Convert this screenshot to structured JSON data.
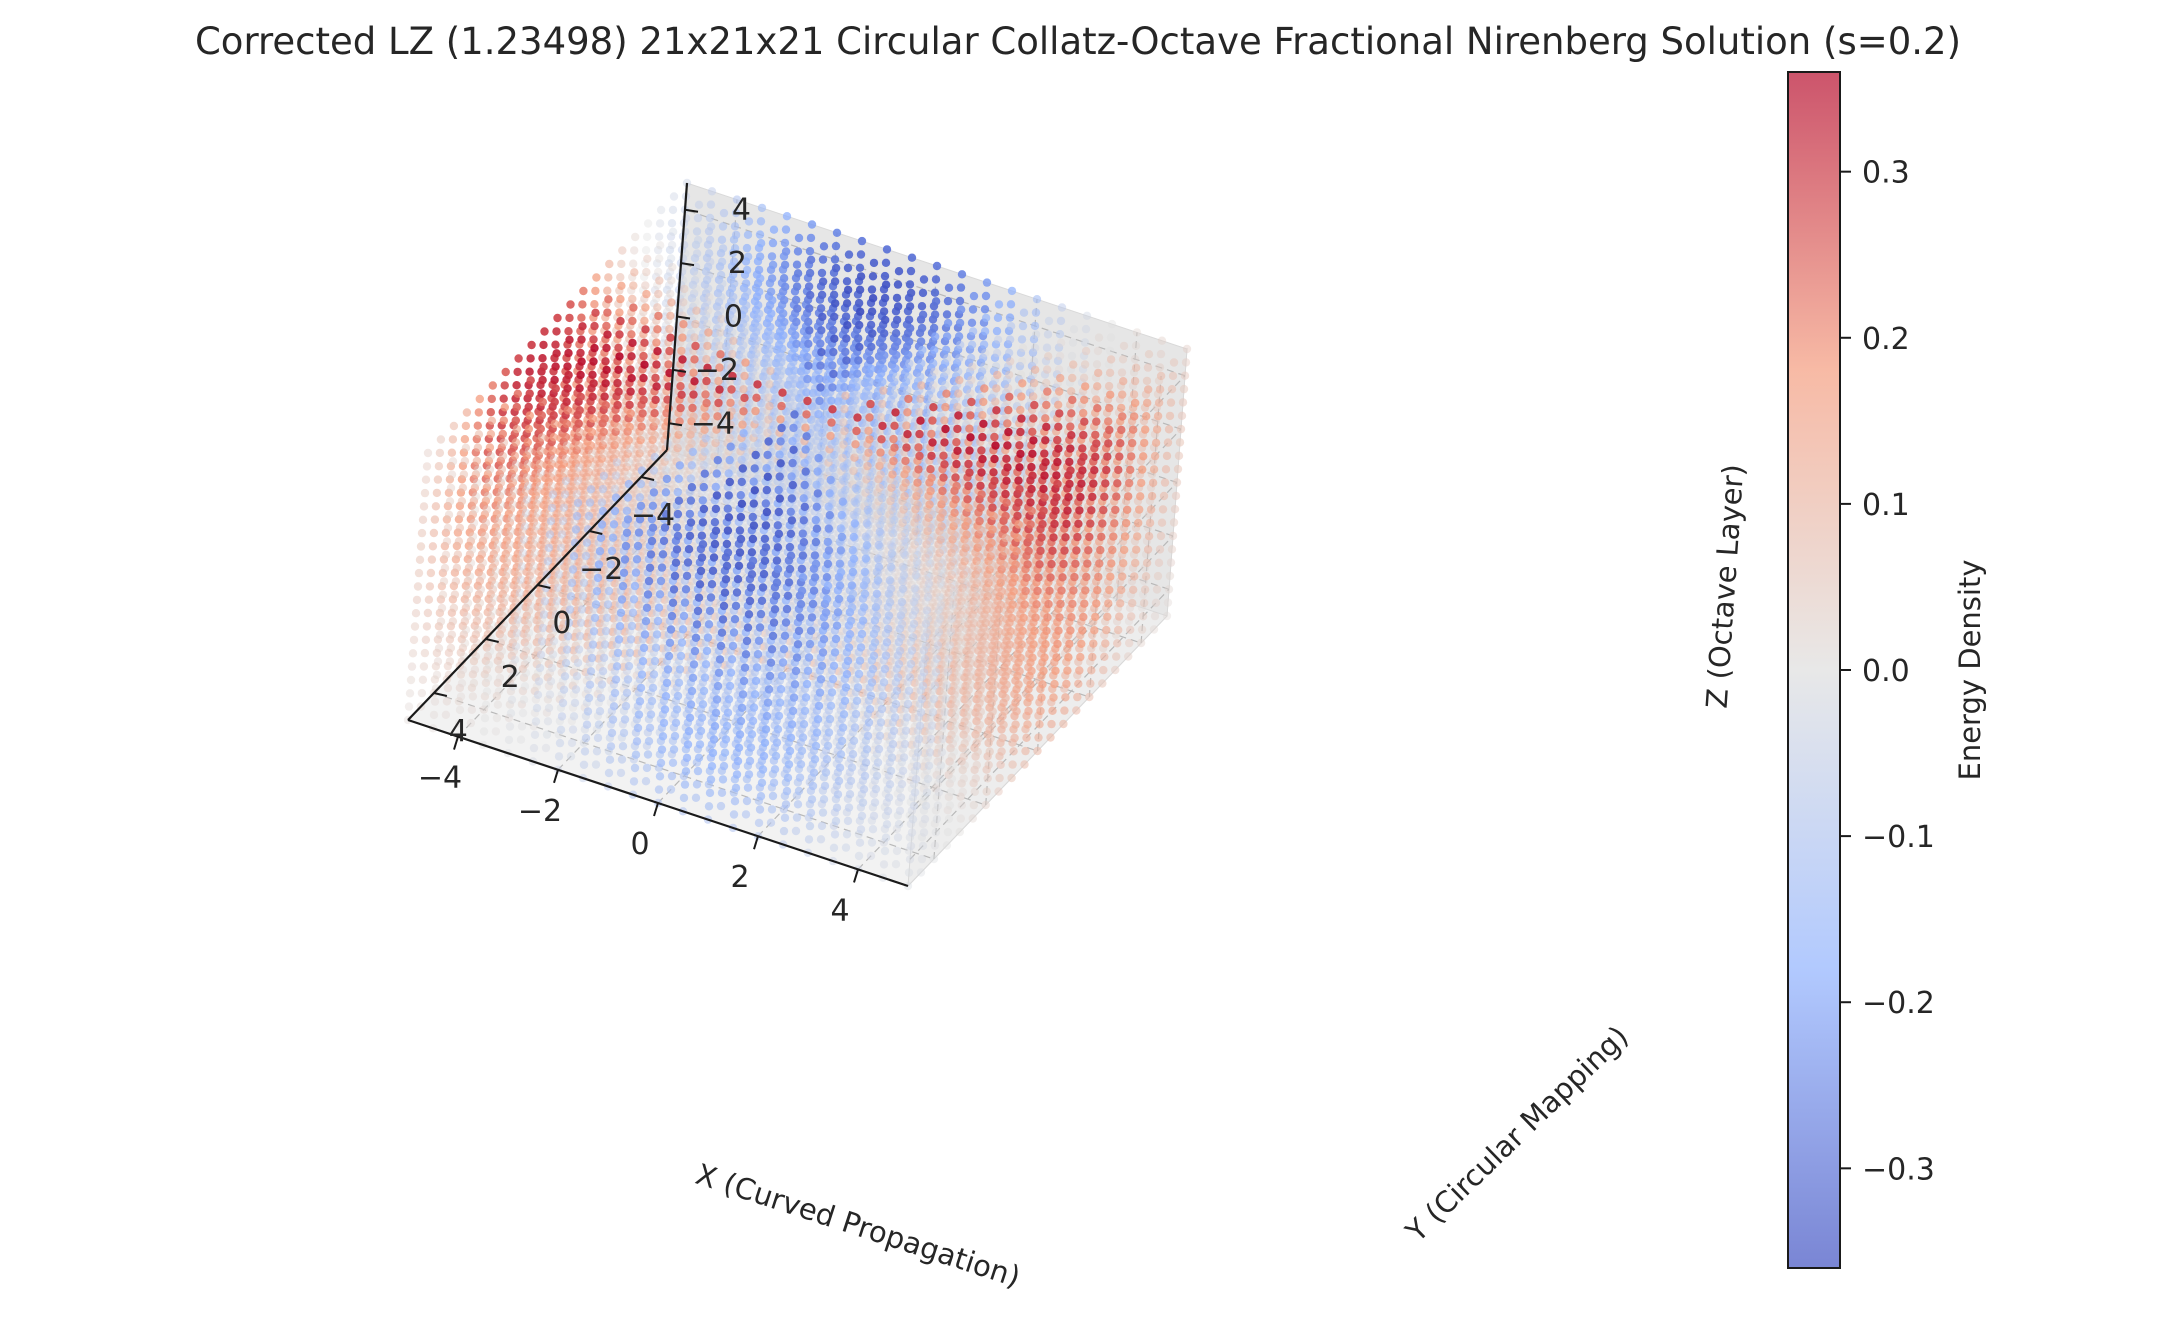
{
  "chart_data": {
    "type": "scatter",
    "projection": "3d",
    "title": "Corrected LZ (1.23498) 21x21x21 Circular Collatz-Octave Fractional Nirenberg Solution (s=0.2)",
    "xlabel": "X (Curved Propagation)",
    "ylabel": "Y (Circular Mapping)",
    "zlabel": "Z (Octave Layer)",
    "colorbar_label": "Energy Density",
    "colormap": "coolwarm",
    "grid": true,
    "grid_points_per_axis": 21,
    "axes": {
      "x": {
        "lim": [
          -5,
          5
        ],
        "ticks": [
          -4,
          -2,
          0,
          2,
          4
        ],
        "tick_labels": [
          "−4",
          "−2",
          "0",
          "2",
          "4"
        ]
      },
      "y": {
        "lim": [
          -5,
          5
        ],
        "ticks": [
          -4,
          -2,
          0,
          2,
          4
        ],
        "tick_labels": [
          "−4",
          "−2",
          "0",
          "2",
          "4"
        ]
      },
      "z": {
        "lim": [
          -5,
          5
        ],
        "ticks": [
          -4,
          -2,
          0,
          2,
          4
        ],
        "tick_labels": [
          "−4",
          "−2",
          "0",
          "2",
          "4"
        ]
      }
    },
    "colorbar": {
      "vmin": -0.36,
      "vmax": 0.36,
      "ticks": [
        -0.3,
        -0.2,
        -0.1,
        0.0,
        0.1,
        0.2,
        0.3
      ],
      "tick_labels": [
        "−0.3",
        "−0.2",
        "−0.1",
        "0.0",
        "0.1",
        "0.2",
        "0.3"
      ],
      "colors": {
        "low": "#3b4cc0",
        "mid": "#dddddd",
        "high": "#b40426"
      }
    }
  }
}
